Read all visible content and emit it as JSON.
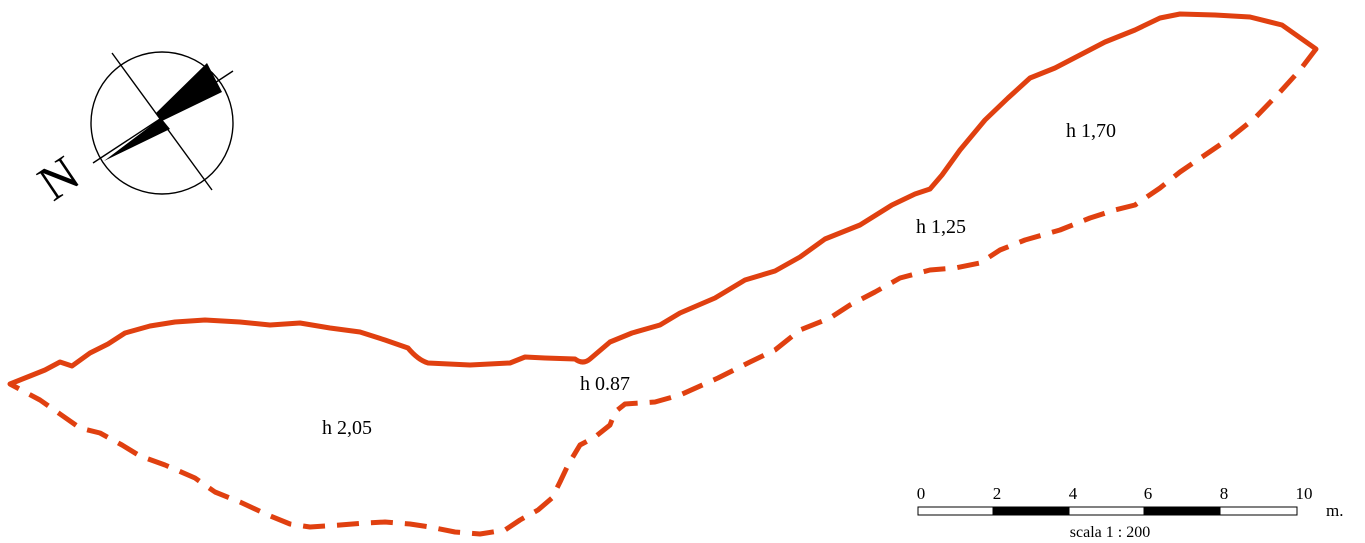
{
  "colors": {
    "outline": "#e04010",
    "ink": "#000000",
    "background": "#ffffff"
  },
  "icons": {
    "north_arrow": "compass-north-arrow-icon"
  },
  "north_arrow": {
    "letter": "N"
  },
  "cave_outline": {
    "wall_style": "solid",
    "dripline_style": "dashed"
  },
  "heights": [
    {
      "label": "h 2,05"
    },
    {
      "label": "h 0.87"
    },
    {
      "label": "h 1,25"
    },
    {
      "label": "h 1,70"
    }
  ],
  "scale_bar": {
    "ticks": [
      "0",
      "2",
      "4",
      "6",
      "8",
      "10"
    ],
    "unit": "m.",
    "caption": "scala 1 : 200"
  }
}
